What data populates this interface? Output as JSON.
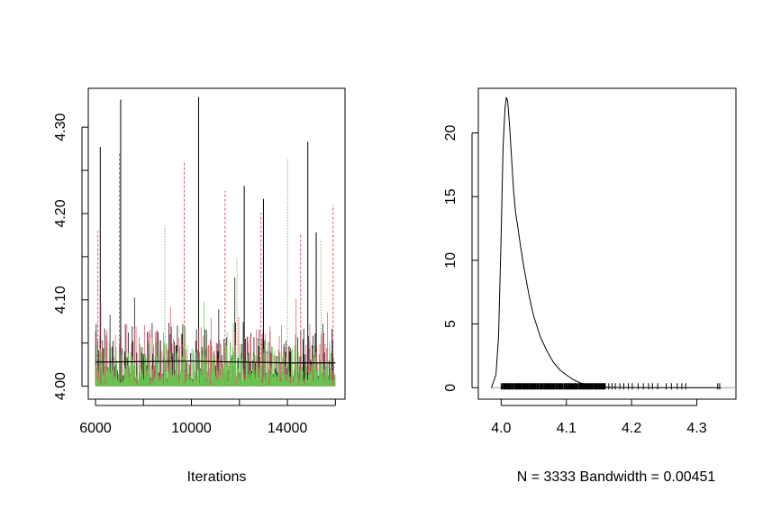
{
  "chart_data": [
    {
      "type": "line",
      "xlabel": "Iterations",
      "ylabel": "",
      "xlim": [
        5700,
        16400
      ],
      "ylim": [
        3.985,
        4.345
      ],
      "x_ticks": [
        6000,
        10000,
        14000
      ],
      "x_tick_labels": [
        "6000",
        "10000",
        "14000"
      ],
      "y_ticks": [
        4.0,
        4.1,
        4.2,
        4.3
      ],
      "y_tick_labels": [
        "4.00",
        "4.10",
        "4.20",
        "4.30"
      ],
      "iter_range": [
        6000,
        16000
      ],
      "floor": 4.0,
      "grid": false,
      "legend": "none",
      "series": [
        {
          "color": "#000000",
          "line": "solid",
          "peaks": [
            [
              6200,
              4.277
            ],
            [
              7050,
              4.332
            ],
            [
              10300,
              4.335
            ],
            [
              12200,
              4.232
            ],
            [
              13000,
              4.217
            ],
            [
              14850,
              4.283
            ],
            [
              15200,
              4.178
            ]
          ]
        },
        {
          "color": "#DF536B",
          "line": "dashed",
          "peaks": [
            [
              6100,
              4.18
            ],
            [
              7000,
              4.27
            ],
            [
              9700,
              4.261
            ],
            [
              11400,
              4.226
            ],
            [
              12900,
              4.201
            ],
            [
              14550,
              4.176
            ],
            [
              15900,
              4.21
            ]
          ]
        },
        {
          "color": "#61D04F",
          "line": "dotted",
          "peaks": [
            [
              8900,
              4.186
            ],
            [
              11900,
              4.15
            ],
            [
              14000,
              4.264
            ],
            [
              15400,
              4.17
            ]
          ]
        }
      ],
      "running_mean": {
        "color": "#000000",
        "values": [
          [
            6000,
            4.028
          ],
          [
            10000,
            4.029
          ],
          [
            14000,
            4.027
          ],
          [
            16000,
            4.027
          ]
        ]
      }
    },
    {
      "type": "line",
      "xlabel": "N = 3333   Bandwidth = 0.00451",
      "ylabel": "",
      "xlim": [
        3.965,
        4.36
      ],
      "ylim": [
        -0.9,
        23.5
      ],
      "x_ticks": [
        4.0,
        4.1,
        4.2,
        4.3
      ],
      "x_tick_labels": [
        "4.0",
        "4.1",
        "4.2",
        "4.3"
      ],
      "y_ticks": [
        0,
        5,
        10,
        15,
        20
      ],
      "y_tick_labels": [
        "0",
        "5",
        "10",
        "15",
        "20"
      ],
      "grid": false,
      "legend": "none",
      "density": {
        "x": [
          3.985,
          3.992,
          3.996,
          4.0,
          4.003,
          4.006,
          4.008,
          4.01,
          4.013,
          4.016,
          4.019,
          4.022,
          4.025,
          4.03,
          4.035,
          4.04,
          4.045,
          4.05,
          4.055,
          4.06,
          4.07,
          4.08,
          4.09,
          4.1,
          4.11,
          4.12,
          4.13,
          4.14,
          4.15,
          4.16,
          4.17,
          4.18,
          4.2,
          4.25,
          4.3,
          4.337
        ],
        "y": [
          0.0,
          1.0,
          4.0,
          12.0,
          19.0,
          22.0,
          22.8,
          22.5,
          20.5,
          18.0,
          15.5,
          13.8,
          12.8,
          11.0,
          9.4,
          8.0,
          6.7,
          5.6,
          4.8,
          4.0,
          2.9,
          2.0,
          1.4,
          1.0,
          0.65,
          0.4,
          0.25,
          0.15,
          0.08,
          0.05,
          0.03,
          0.02,
          0.01,
          0.005,
          0.003,
          0.0
        ]
      },
      "rug": {
        "dense_range": [
          4.0,
          4.16
        ],
        "sparse": [
          4.165,
          4.17,
          4.175,
          4.182,
          4.188,
          4.195,
          4.201,
          4.21,
          4.218,
          4.226,
          4.232,
          4.24,
          4.253,
          4.261,
          4.27,
          4.277,
          4.283,
          4.332,
          4.335
        ]
      }
    }
  ]
}
